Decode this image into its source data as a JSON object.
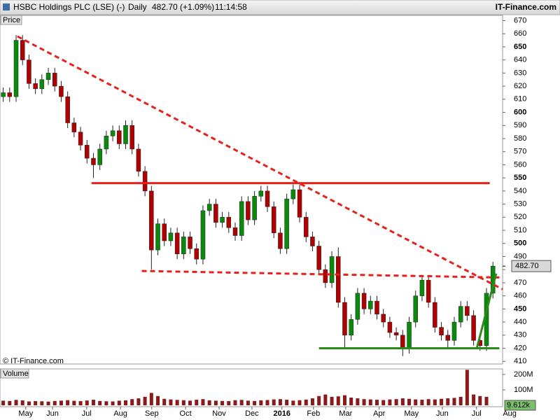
{
  "header": {
    "name": "HSBC Holdings PLC (LSE) (-)",
    "interval": "Daily",
    "quote": "482.70 (+1.09%)",
    "time": "11:14:58",
    "brand": "IT-Finance.com"
  },
  "chart_data": {
    "type": "candlestick",
    "price_label": "Price",
    "volume_label": "Volume",
    "copyright": "© IT-Finance.com",
    "up_color": "#0a8a0a",
    "down_color": "#b00000",
    "volume_color": "#8b1a1a",
    "xlim": [
      -0.8,
      14.8
    ],
    "xticks": [
      {
        "value": 0,
        "label": "May"
      },
      {
        "value": 0.83,
        "label": "Jun"
      },
      {
        "value": 1.89,
        "label": "Jul"
      },
      {
        "value": 2.94,
        "label": "Aug"
      },
      {
        "value": 3.91,
        "label": "Sep"
      },
      {
        "value": 4.96,
        "label": "Oct"
      },
      {
        "value": 6.0,
        "label": "Nov"
      },
      {
        "value": 7.02,
        "label": "Dec"
      },
      {
        "value": 7.95,
        "label": "2016"
      },
      {
        "value": 8.93,
        "label": "Feb"
      },
      {
        "value": 9.93,
        "label": "Mar"
      },
      {
        "value": 10.97,
        "label": "Apr"
      },
      {
        "value": 11.97,
        "label": "May"
      },
      {
        "value": 12.93,
        "label": "Jun"
      },
      {
        "value": 13.99,
        "label": "Jul"
      },
      {
        "value": 15.02,
        "label": "Aug"
      }
    ],
    "ylim": [
      408,
      674
    ],
    "yticks": [
      410,
      420,
      430,
      440,
      450,
      460,
      470,
      480,
      490,
      500,
      510,
      520,
      530,
      540,
      550,
      560,
      570,
      580,
      590,
      600,
      610,
      620,
      630,
      640,
      650,
      660,
      670
    ],
    "last_price": {
      "value": 482.7,
      "label": "482.70"
    },
    "x": [
      -0.7,
      -0.5,
      -0.3,
      -0.1,
      0.1,
      0.3,
      0.5,
      0.7,
      0.9,
      1.1,
      1.3,
      1.5,
      1.7,
      1.9,
      2.1,
      2.3,
      2.5,
      2.7,
      2.9,
      3.1,
      3.3,
      3.5,
      3.7,
      3.9,
      4.1,
      4.3,
      4.5,
      4.7,
      4.9,
      5.1,
      5.3,
      5.5,
      5.7,
      5.9,
      6.1,
      6.3,
      6.5,
      6.7,
      6.9,
      7.1,
      7.3,
      7.5,
      7.7,
      7.9,
      8.1,
      8.3,
      8.5,
      8.7,
      8.9,
      9.1,
      9.3,
      9.5,
      9.7,
      9.9,
      10.1,
      10.3,
      10.5,
      10.7,
      10.9,
      11.1,
      11.3,
      11.5,
      11.7,
      11.9,
      12.1,
      12.3,
      12.5,
      12.7,
      12.9,
      13.1,
      13.3,
      13.5,
      13.7,
      13.9,
      14.1,
      14.3,
      14.5
    ],
    "open": [
      612,
      615,
      612,
      655,
      640,
      622,
      618,
      625,
      630,
      620,
      612,
      592,
      585,
      575,
      565,
      560,
      572,
      582,
      586,
      576,
      590,
      572,
      555,
      540,
      495,
      515,
      502,
      508,
      492,
      505,
      496,
      488,
      525,
      530,
      516,
      520,
      512,
      506,
      532,
      518,
      536,
      540,
      528,
      508,
      496,
      534,
      541,
      520,
      505,
      498,
      480,
      470,
      490,
      455,
      430,
      442,
      462,
      450,
      456,
      446,
      440,
      432,
      430,
      420,
      440,
      460,
      472,
      455,
      436,
      430,
      426,
      440,
      452,
      445,
      426,
      422,
      462
    ],
    "high": [
      619,
      619,
      659,
      659,
      644,
      626,
      629,
      634,
      634,
      624,
      616,
      596,
      589,
      579,
      569,
      576,
      586,
      590,
      590,
      594,
      594,
      576,
      559,
      544,
      519,
      519,
      512,
      512,
      509,
      509,
      500,
      529,
      534,
      534,
      524,
      524,
      516,
      536,
      536,
      540,
      544,
      544,
      532,
      512,
      538,
      545,
      545,
      524,
      509,
      502,
      484,
      494,
      497,
      459,
      446,
      466,
      466,
      460,
      460,
      450,
      444,
      436,
      434,
      444,
      464,
      476,
      476,
      459,
      440,
      434,
      444,
      456,
      456,
      449,
      430,
      466,
      486
    ],
    "low": [
      608,
      608,
      608,
      636,
      618,
      614,
      614,
      621,
      616,
      608,
      588,
      581,
      571,
      561,
      550,
      556,
      568,
      578,
      572,
      572,
      568,
      551,
      536,
      480,
      491,
      498,
      498,
      488,
      488,
      492,
      484,
      484,
      521,
      512,
      512,
      508,
      502,
      502,
      514,
      514,
      532,
      524,
      504,
      492,
      492,
      530,
      516,
      501,
      494,
      476,
      466,
      466,
      451,
      420,
      426,
      438,
      446,
      446,
      442,
      436,
      428,
      426,
      414,
      416,
      436,
      456,
      451,
      432,
      426,
      420,
      422,
      436,
      441,
      422,
      418,
      418,
      458
    ],
    "close": [
      615,
      612,
      655,
      640,
      622,
      618,
      625,
      630,
      620,
      612,
      592,
      585,
      575,
      565,
      560,
      572,
      582,
      586,
      576,
      590,
      572,
      555,
      540,
      495,
      515,
      502,
      508,
      492,
      505,
      496,
      488,
      525,
      530,
      516,
      520,
      512,
      506,
      532,
      518,
      536,
      540,
      528,
      508,
      496,
      534,
      541,
      520,
      505,
      498,
      480,
      470,
      490,
      455,
      430,
      442,
      462,
      450,
      456,
      446,
      440,
      432,
      430,
      420,
      440,
      460,
      472,
      455,
      436,
      430,
      426,
      440,
      452,
      445,
      426,
      422,
      462,
      482.7
    ],
    "volume": [
      30000000,
      28000000,
      35000000,
      32000000,
      25000000,
      27000000,
      26000000,
      24000000,
      28000000,
      30000000,
      33000000,
      29000000,
      27000000,
      31000000,
      36000000,
      28000000,
      26000000,
      25000000,
      30000000,
      32000000,
      40000000,
      45000000,
      55000000,
      80000000,
      60000000,
      42000000,
      38000000,
      35000000,
      33000000,
      30000000,
      36000000,
      40000000,
      32000000,
      30000000,
      28000000,
      27000000,
      33000000,
      35000000,
      30000000,
      28000000,
      32000000,
      34000000,
      38000000,
      40000000,
      36000000,
      30000000,
      33000000,
      37000000,
      45000000,
      60000000,
      70000000,
      55000000,
      58000000,
      65000000,
      50000000,
      45000000,
      40000000,
      38000000,
      36000000,
      34000000,
      38000000,
      40000000,
      45000000,
      42000000,
      38000000,
      36000000,
      40000000,
      38000000,
      42000000,
      45000000,
      48000000,
      55000000,
      230000000,
      70000000,
      60000000,
      55000000,
      9612
    ],
    "volume_value_labels": {
      "76": "9.612k"
    },
    "vlim": [
      0,
      236000000
    ],
    "vticks": [
      {
        "value": 100000000,
        "label": "100M"
      },
      {
        "value": 200000000,
        "label": "200M"
      }
    ],
    "trend_lines": [
      {
        "x": [
          -0.26,
          14.8
        ],
        "y": [
          658,
          465
        ],
        "color": "#e8201a",
        "style": "dashed"
      },
      {
        "x": [
          3.6,
          14.7
        ],
        "y": [
          479,
          474
        ],
        "color": "#e8201a",
        "style": "dashed"
      },
      {
        "x": [
          2.04,
          14.4
        ],
        "y": [
          546,
          546
        ],
        "color": "#e8201a",
        "style": "solid"
      },
      {
        "x": [
          9.1,
          14.7
        ],
        "y": [
          420,
          420
        ],
        "color": "#2a8a1a",
        "style": "solid"
      },
      {
        "x": [
          14.0,
          14.6
        ],
        "y": [
          420,
          477
        ],
        "color": "#2a8a1a",
        "style": "solid"
      }
    ]
  }
}
